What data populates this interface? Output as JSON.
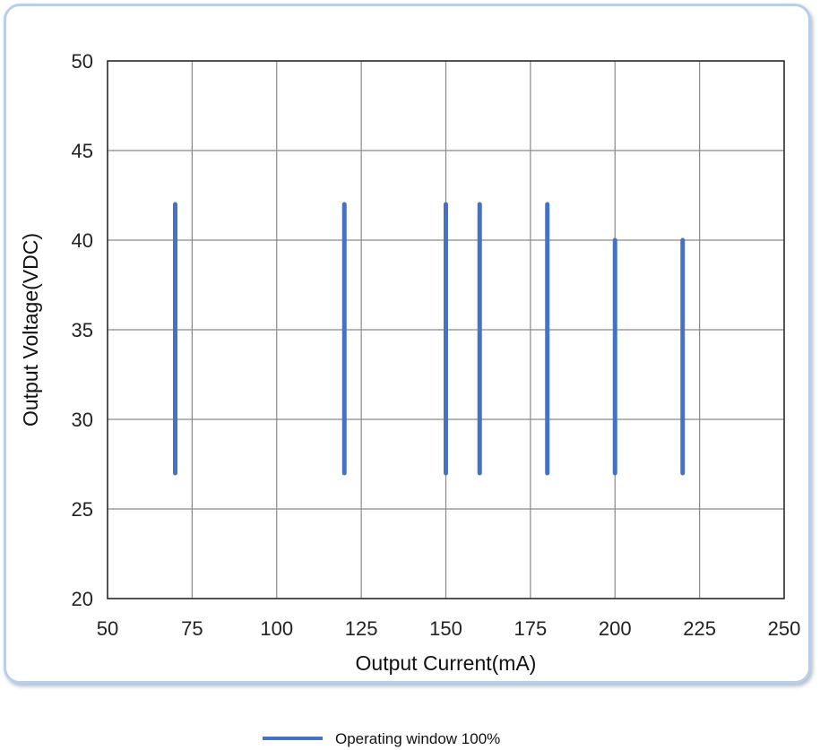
{
  "chart_data": {
    "type": "line",
    "title": "",
    "xlabel": "Output Current(mA)",
    "ylabel": "Output Voltage(VDC)",
    "xlim": [
      50,
      250
    ],
    "ylim": [
      20,
      50
    ],
    "x_ticks": [
      50,
      75,
      100,
      125,
      150,
      175,
      200,
      225,
      250
    ],
    "y_ticks": [
      20,
      25,
      30,
      35,
      40,
      45,
      50
    ],
    "grid": true,
    "series": [
      {
        "name": "Operating window 100%",
        "color": "#4472c4",
        "segments": [
          {
            "x": 70,
            "y_min": 27,
            "y_max": 42
          },
          {
            "x": 120,
            "y_min": 27,
            "y_max": 42
          },
          {
            "x": 150,
            "y_min": 27,
            "y_max": 42
          },
          {
            "x": 160,
            "y_min": 27,
            "y_max": 42
          },
          {
            "x": 180,
            "y_min": 27,
            "y_max": 42
          },
          {
            "x": 200,
            "y_min": 27,
            "y_max": 40
          },
          {
            "x": 220,
            "y_min": 27,
            "y_max": 40
          }
        ]
      }
    ],
    "legend": {
      "position": "bottom-center"
    }
  }
}
